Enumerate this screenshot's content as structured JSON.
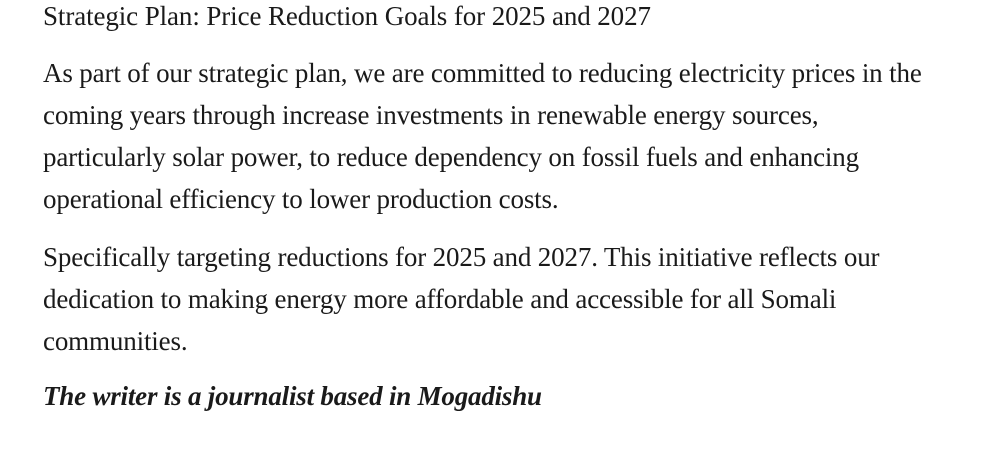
{
  "article": {
    "heading": "Strategic Plan: Price Reduction Goals for 2025 and 2027",
    "paragraphs": [
      "As part of our strategic plan, we are committed to reducing electricity prices in the coming years through increase investments in renewable energy sources, particularly solar power, to reduce dependency on fossil fuels and enhancing operational efficiency to lower production costs.",
      "Specifically targeting reductions for 2025 and 2027. This initiative reflects our dedication to making energy more affordable and accessible for all Somali communities."
    ],
    "byline": "The writer is a journalist based in Mogadishu"
  }
}
